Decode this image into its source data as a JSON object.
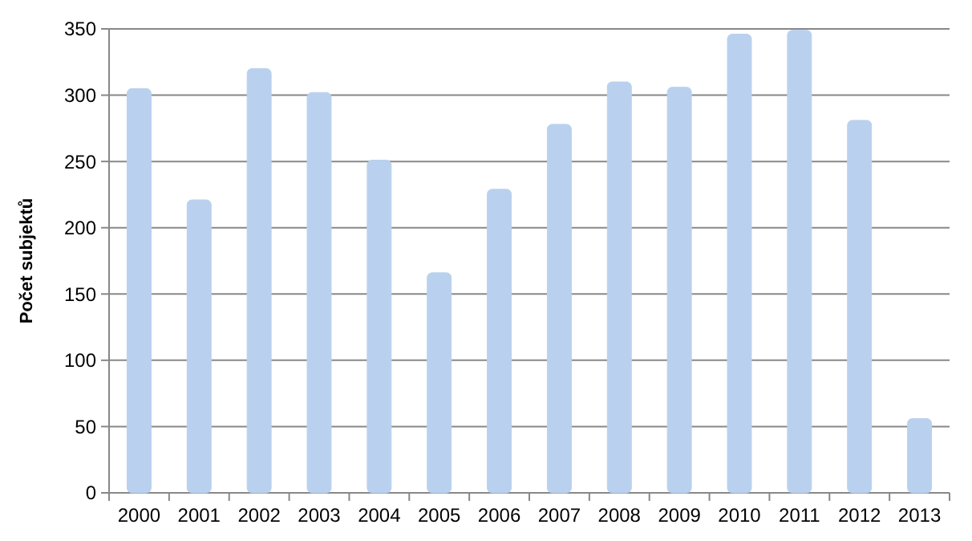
{
  "chart_data": {
    "type": "bar",
    "ylabel": "Počet subjektů",
    "categories": [
      "2000",
      "2001",
      "2002",
      "2003",
      "2004",
      "2005",
      "2006",
      "2007",
      "2008",
      "2009",
      "2010",
      "2011",
      "2012",
      "2013"
    ],
    "values": [
      305,
      221,
      320,
      302,
      251,
      166,
      229,
      278,
      310,
      306,
      346,
      349,
      281,
      56
    ],
    "color": "#b9d1ee",
    "ylim": [
      0,
      350
    ],
    "yticks": [
      0,
      50,
      100,
      150,
      200,
      250,
      300,
      350
    ],
    "grid": "y"
  }
}
